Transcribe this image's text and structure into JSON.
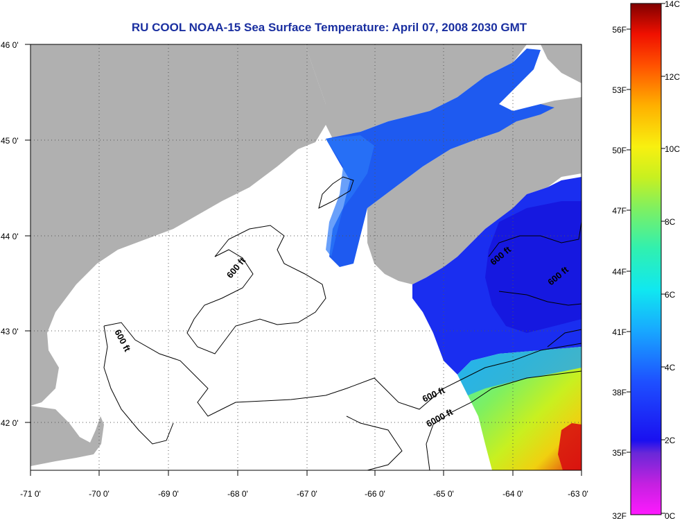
{
  "title": "RU COOL  NOAA-15  Sea Surface Temperature:  April 07, 2008 2030 GMT",
  "map": {
    "lon_ticks": [
      "-71 0'",
      "-70 0'",
      "-69 0'",
      "-68 0'",
      "-67 0'",
      "-66 0'",
      "-65 0'",
      "-64 0'",
      "-63 0'"
    ],
    "lat_ticks": [
      "46 0'",
      "45 0'",
      "44 0'",
      "43 0'",
      "42 0'"
    ],
    "contour_labels": [
      "600 ft",
      "600 ft",
      "600 ft",
      "600 ft",
      "600 ft",
      "6000 ft"
    ],
    "colors": {
      "land": "#b0b0b0",
      "no_data": "#ffffff",
      "cold_water": "#1a2cf0",
      "warm_water": "#d81010"
    }
  },
  "colorbar": {
    "celsius": [
      "14C",
      "12C",
      "10C",
      "8C",
      "6C",
      "4C",
      "2C",
      "0C"
    ],
    "fahrenheit": [
      "56F",
      "53F",
      "50F",
      "47F",
      "44F",
      "41F",
      "38F",
      "35F",
      "32F"
    ]
  }
}
